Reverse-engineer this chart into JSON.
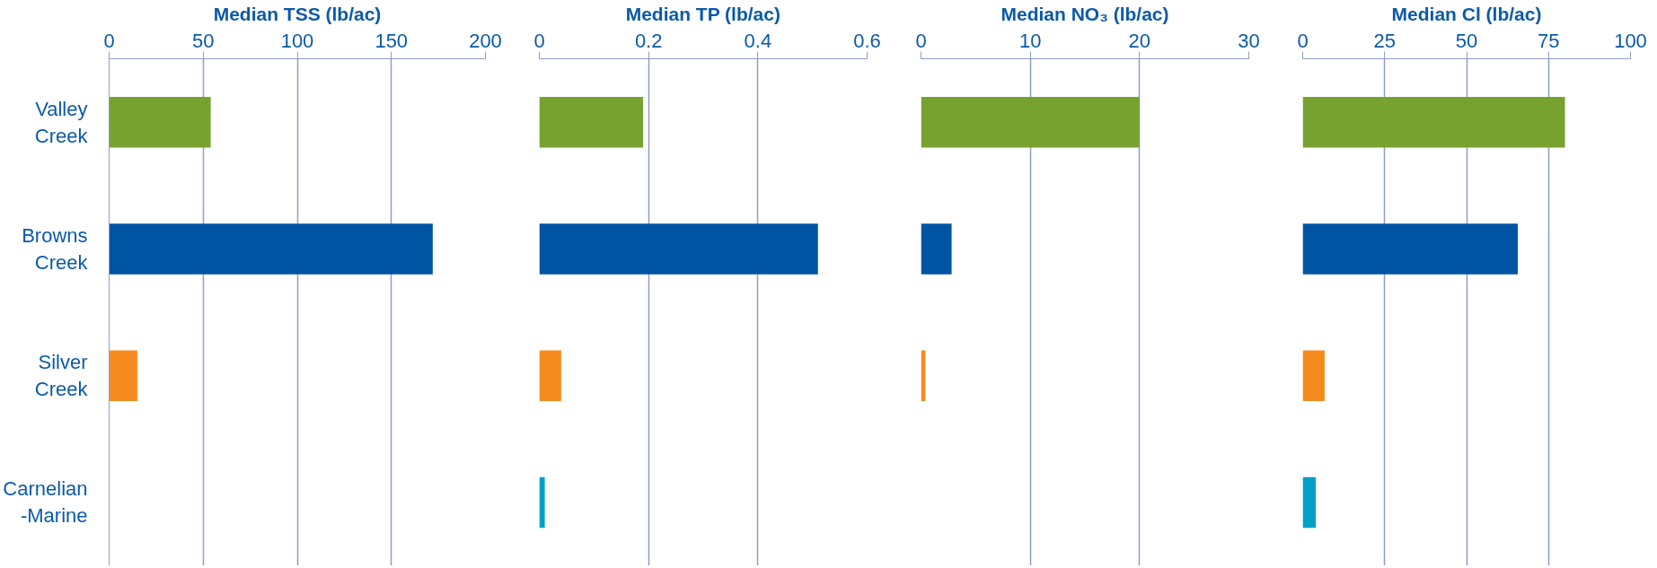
{
  "chart_data": [
    {
      "type": "bar",
      "orientation": "horizontal",
      "xlabel": "Median TSS (lb/ac)",
      "categories": [
        "Valley Creek",
        "Browns Creek",
        "Silver Creek",
        "Carnelian-Marine"
      ],
      "values": [
        54,
        172,
        15,
        null
      ],
      "colors": [
        "#77a22f",
        "#0054a4",
        "#f58b1f",
        "#00a0c6"
      ],
      "xlim": [
        0,
        200
      ],
      "xticks": [
        0,
        50,
        100,
        150,
        200
      ],
      "grid": "x"
    },
    {
      "type": "bar",
      "orientation": "horizontal",
      "xlabel": "Median TP (lb/ac)",
      "categories": [
        null,
        null,
        null,
        null
      ],
      "values": [
        0.19,
        0.51,
        0.04,
        0.01
      ],
      "colors": [
        "#77a22f",
        "#0054a4",
        "#f58b1f",
        "#00a0c6"
      ],
      "xlim": [
        0,
        0.6
      ],
      "xticks": [
        0,
        0.2,
        0.4,
        0.6
      ],
      "grid": "x",
      "tick_labels": "x"
    },
    {
      "type": "bar",
      "orientation": "horizontal",
      "xlabel": "Median NO₃ (lb/ac)",
      "categories": [
        null,
        null,
        null,
        null
      ],
      "values": [
        20,
        2.8,
        0.4,
        null
      ],
      "colors": [
        "#77a22f",
        "#0054a4",
        "#f58b1f",
        "#00a0c6"
      ],
      "xlim": [
        0,
        30
      ],
      "xticks": [
        0,
        10,
        20,
        30
      ],
      "grid": "x",
      "tick_labels": "x"
    },
    {
      "type": "bar",
      "orientation": "horizontal",
      "xlabel": "Median Cl (lb/ac)",
      "categories": [
        null,
        null,
        null,
        null
      ],
      "values": [
        80,
        65.6,
        6.7,
        4
      ],
      "colors": [
        "#77a22f",
        "#0054a4",
        "#f58b1f",
        "#00a0c6"
      ],
      "xlim": [
        0,
        100
      ],
      "xticks": [
        0,
        25,
        50,
        75,
        100
      ],
      "grid": "x",
      "tick_labels": "x"
    }
  ]
}
